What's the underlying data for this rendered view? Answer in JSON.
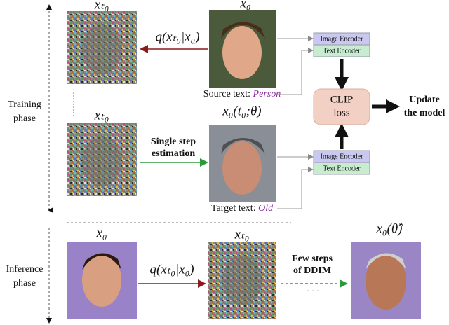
{
  "phases": {
    "training": [
      "Training",
      "phase"
    ],
    "inference": [
      "Inference",
      "phase"
    ]
  },
  "training": {
    "noisy_label": "xₜ₀",
    "source_label": "x₀",
    "forward": "q(xₜ₀|x₀)",
    "source_text": {
      "prefix": "Source text:",
      "word": "Person"
    },
    "estimate_noisy_label": "xₜ₀",
    "estimate_label": "x₀(t₀;θ)",
    "step": [
      "Single step",
      "estimation"
    ],
    "target_text": {
      "prefix": "Target text:",
      "word": "Old"
    },
    "encoders": [
      {
        "image": "Image Encoder",
        "text": "Text Encoder"
      },
      {
        "image": "Image Encoder",
        "text": "Text Encoder"
      }
    ],
    "loss": [
      "CLIP",
      "loss"
    ],
    "update": [
      "Update",
      "the model"
    ]
  },
  "inference": {
    "source_label": "x₀",
    "forward": "q(xₜ₀|x₀)",
    "noisy_label": "xₜ₀",
    "ddim": [
      "Few steps",
      "of DDIM"
    ],
    "dots": "· · ·",
    "result_label": "x₀(θ̂)"
  }
}
